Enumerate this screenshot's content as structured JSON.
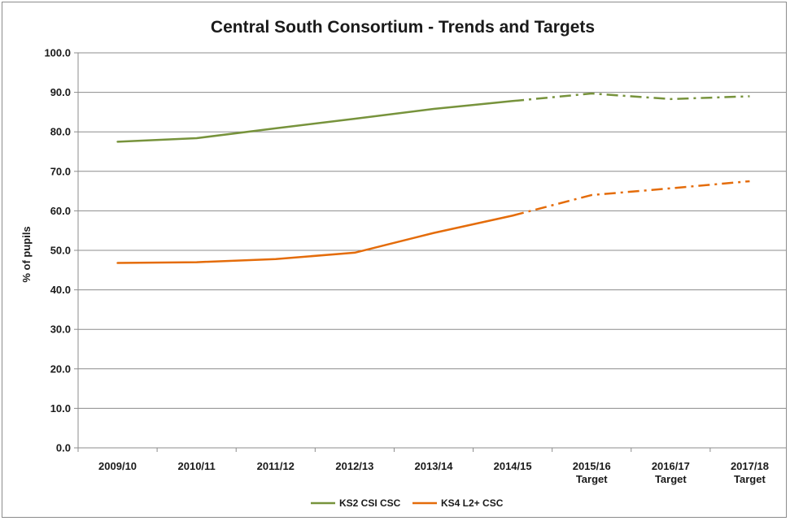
{
  "chart_data": {
    "type": "line",
    "title": "Central South Consortium - Trends and Targets",
    "xlabel": "",
    "ylabel": "% of pupils",
    "ylim": [
      0,
      100
    ],
    "yticks": [
      "0.0",
      "10.0",
      "20.0",
      "30.0",
      "40.0",
      "50.0",
      "60.0",
      "70.0",
      "80.0",
      "90.0",
      "100.0"
    ],
    "grid": true,
    "legend_position": "bottom",
    "categories": [
      [
        "2009/10"
      ],
      [
        "2010/11"
      ],
      [
        "2011/12"
      ],
      [
        "2012/13"
      ],
      [
        "2013/14"
      ],
      [
        "2014/15"
      ],
      [
        "2015/16",
        "Target"
      ],
      [
        "2016/17",
        "Target"
      ],
      [
        "2017/18",
        "Target"
      ]
    ],
    "actual_until_index": 5,
    "series": [
      {
        "name": "KS2 CSI CSC",
        "color": "#77933c",
        "values": [
          77.5,
          78.4,
          80.9,
          83.3,
          85.8,
          87.8,
          89.7,
          88.3,
          89.0
        ]
      },
      {
        "name": "KS4 L2+ CSC",
        "color": "#e46c0a",
        "values": [
          46.8,
          47.0,
          47.8,
          49.4,
          54.4,
          58.8,
          64.0,
          65.7,
          67.5
        ]
      }
    ]
  }
}
